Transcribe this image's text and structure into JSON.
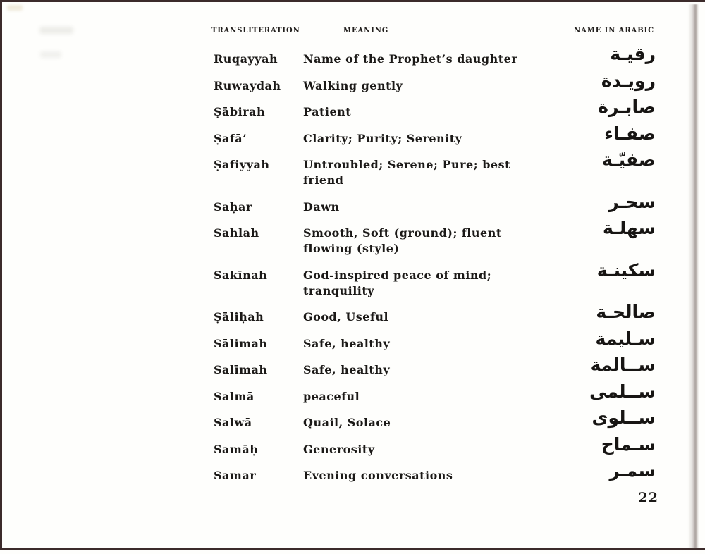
{
  "page": {
    "number": "22"
  },
  "table": {
    "headers": {
      "transliteration": "TRANSLITERATION",
      "meaning": "MEANING",
      "arabic": "NAME IN ARABIC"
    },
    "rows": [
      {
        "translit": "Ruqayyah",
        "meaning": "Name of the Prophet’s daughter",
        "arabic": "رقيـة"
      },
      {
        "translit": "Ruwaydah",
        "meaning": "Walking gently",
        "arabic": "رويـدة"
      },
      {
        "translit": "Ṣābirah",
        "meaning": "Patient",
        "arabic": "صابـرة"
      },
      {
        "translit": "Ṣafā’",
        "meaning": "Clarity; Purity; Serenity",
        "arabic": "صفـاء"
      },
      {
        "translit": "Ṣafiyyah",
        "meaning": "Untroubled; Serene; Pure; best\nfriend",
        "arabic": "صفيّـة"
      },
      {
        "translit": "Saḥar",
        "meaning": "Dawn",
        "arabic": "سحـر"
      },
      {
        "translit": "Sahlah",
        "meaning": "Smooth, Soft (ground); fluent\nflowing (style)",
        "arabic": "سهلـة"
      },
      {
        "translit": "Sakīnah",
        "meaning": "God-inspired peace of mind;\ntranquility",
        "arabic": "سكينـة"
      },
      {
        "translit": "Ṣāliḥah",
        "meaning": "Good, Useful",
        "arabic": "صالحـة"
      },
      {
        "translit": "Sālimah",
        "meaning": "Safe, healthy",
        "arabic": "سـليمة"
      },
      {
        "translit": "Salīmah",
        "meaning": "Safe, healthy",
        "arabic": "ســالمة"
      },
      {
        "translit": "Salmā",
        "meaning": "peaceful",
        "arabic": "ســلمى"
      },
      {
        "translit": "Salwā",
        "meaning": "Quail, Solace",
        "arabic": "ســلوى"
      },
      {
        "translit": "Samāḥ",
        "meaning": "Generosity",
        "arabic": "سـماح"
      },
      {
        "translit": "Samar",
        "meaning": "Evening conversations",
        "arabic": "سمـر"
      }
    ]
  }
}
